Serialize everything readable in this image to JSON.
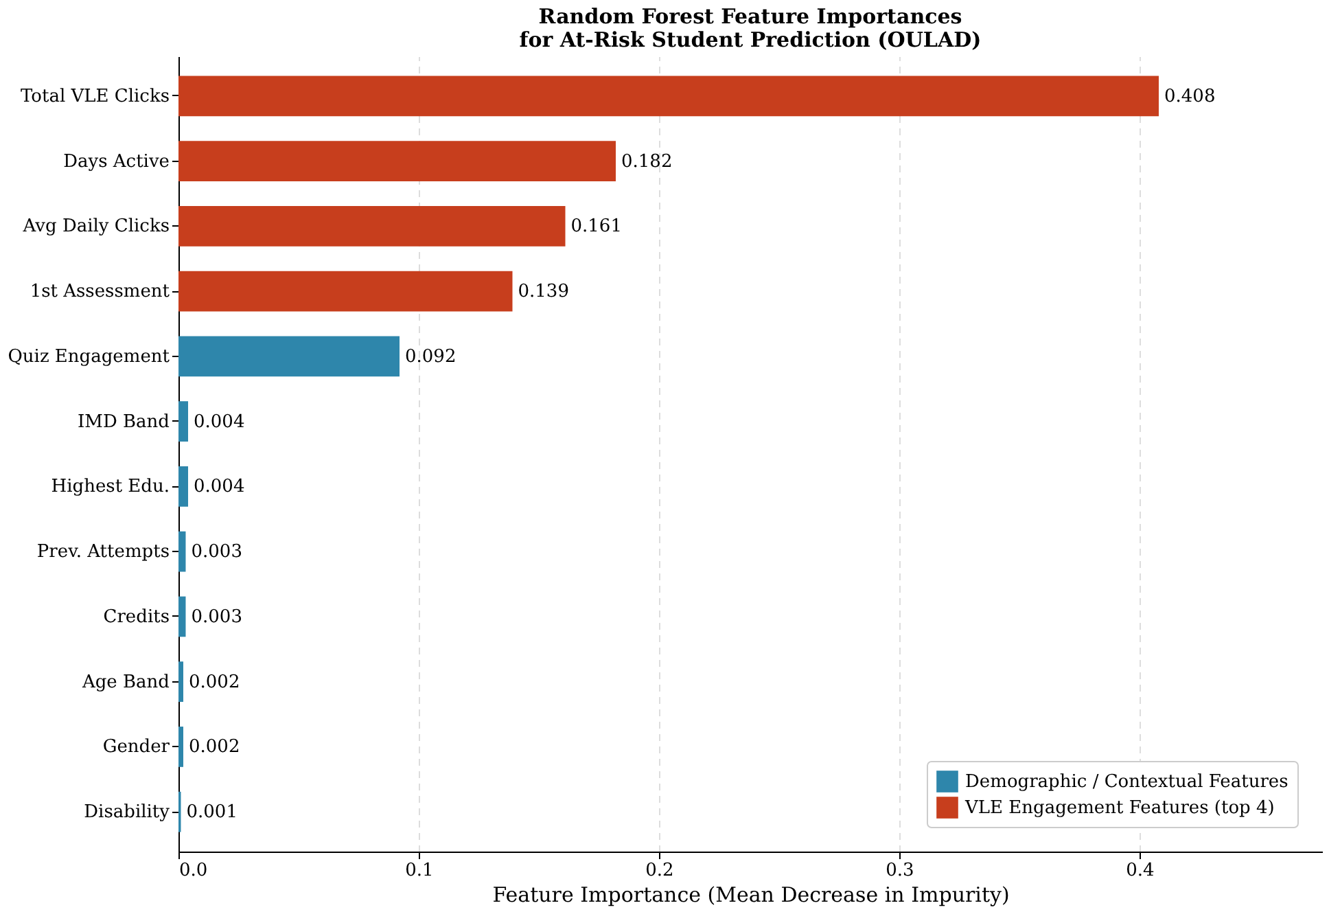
{
  "chart_data": {
    "type": "bar",
    "orientation": "horizontal",
    "title": "Random Forest Feature Importances\nfor At-Risk Student Prediction (OULAD)",
    "xlabel": "Feature Importance (Mean Decrease in Impurity)",
    "categories": [
      "Total VLE Clicks",
      "Days Active",
      "Avg Daily Clicks",
      "1st Assessment",
      "Quiz Engagement",
      "IMD Band",
      "Highest Edu.",
      "Prev. Attempts",
      "Credits",
      "Age Band",
      "Gender",
      "Disability"
    ],
    "series": [
      {
        "name": "Demographic / Contextual Features",
        "color": "#2e86ab",
        "values": [
          null,
          null,
          null,
          null,
          0.092,
          0.004,
          0.004,
          0.003,
          0.003,
          0.002,
          0.002,
          0.001
        ]
      },
      {
        "name": "VLE Engagement Features (top 4)",
        "color": "#c73e1d",
        "values": [
          0.408,
          0.182,
          0.161,
          0.139,
          null,
          null,
          null,
          null,
          null,
          null,
          null,
          null
        ]
      }
    ],
    "xlim": [
      0,
      0.476
    ],
    "xticks": [
      {
        "value": 0,
        "label": "0.0"
      },
      0.1,
      0.2,
      0.3,
      0.4
    ],
    "grid": "x",
    "legend": "bottom right",
    "data_labels": true
  }
}
